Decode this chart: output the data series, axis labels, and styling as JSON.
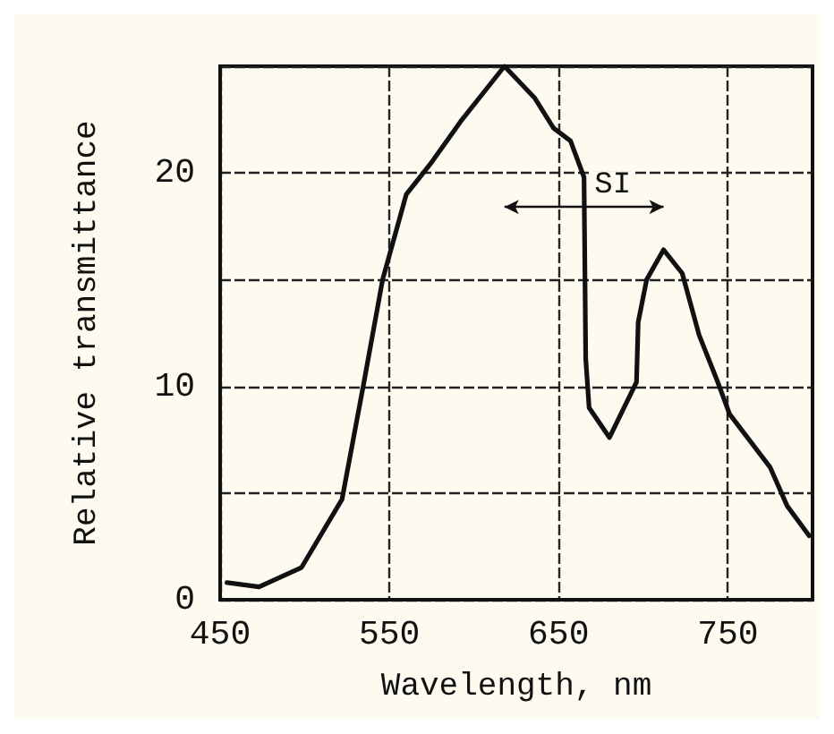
{
  "chart_data": {
    "type": "line",
    "xlabel": "Wavelength, nm",
    "ylabel": "Relative transmittance",
    "x": [
      454,
      473,
      498,
      522,
      535,
      546,
      560,
      574,
      592,
      618,
      636,
      647,
      657,
      665,
      666,
      668,
      680,
      696,
      697,
      702,
      712,
      723,
      733,
      744,
      751,
      775,
      785,
      798
    ],
    "series": [
      {
        "color": "#111111",
        "values": [
          0.8,
          0.6,
          1.5,
          4.7,
          10.2,
          15,
          19,
          20.4,
          22.4,
          25,
          23.5,
          22.1,
          21.5,
          19.8,
          11.3,
          9,
          7.6,
          10.2,
          13,
          15,
          16.4,
          15.3,
          12.4,
          10.2,
          8.7,
          6.2,
          4.4,
          3
        ]
      }
    ],
    "xlim": [
      450,
      800
    ],
    "xticks": [
      450,
      550,
      650,
      750
    ],
    "ylim": [
      0,
      25
    ],
    "yticks": [
      0,
      {
        "value": 5,
        "label": null
      },
      10,
      {
        "value": 15,
        "label": null
      },
      20,
      {
        "value": 25,
        "label": null
      }
    ],
    "grid": true,
    "marker": "none",
    "line_style": "solid",
    "annotations": [
      {
        "text": "SI",
        "x": 665,
        "y": 18.4
      }
    ]
  }
}
